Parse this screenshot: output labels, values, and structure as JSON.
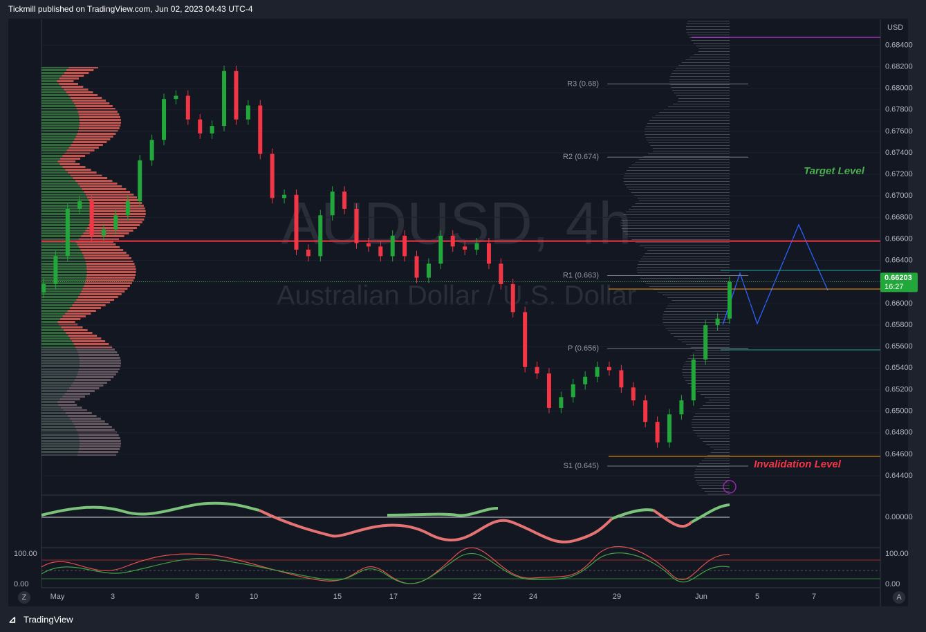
{
  "header": {
    "text": "Tickmill published on TradingView.com, Jun 02, 2023 04:43 UTC-4"
  },
  "chart": {
    "symbol": "AUDUSD, 4h",
    "description": "Australian Dollar / U.S. Dollar",
    "currency": "USD",
    "candles": [
      [
        0.661,
        0.6623,
        0.6605,
        0.6618
      ],
      [
        0.6618,
        0.6649,
        0.6613,
        0.6644
      ],
      [
        0.6644,
        0.6693,
        0.6639,
        0.6688
      ],
      [
        0.6688,
        0.67,
        0.6683,
        0.6695
      ],
      [
        0.6695,
        0.67,
        0.6658,
        0.6663
      ],
      [
        0.6663,
        0.6674,
        0.6658,
        0.6669
      ],
      [
        0.6669,
        0.6687,
        0.6664,
        0.6682
      ],
      [
        0.6682,
        0.67,
        0.6677,
        0.6695
      ],
      [
        0.6695,
        0.6738,
        0.669,
        0.6733
      ],
      [
        0.6733,
        0.6757,
        0.6728,
        0.6752
      ],
      [
        0.6752,
        0.6795,
        0.6747,
        0.679
      ],
      [
        0.679,
        0.6798,
        0.6785,
        0.6793
      ],
      [
        0.6793,
        0.6798,
        0.6766,
        0.6771
      ],
      [
        0.6771,
        0.6776,
        0.6753,
        0.6758
      ],
      [
        0.6758,
        0.677,
        0.6753,
        0.6765
      ],
      [
        0.6765,
        0.6821,
        0.676,
        0.6816
      ],
      [
        0.6816,
        0.6821,
        0.6766,
        0.6771
      ],
      [
        0.6771,
        0.6789,
        0.6766,
        0.6784
      ],
      [
        0.6784,
        0.6789,
        0.6734,
        0.6739
      ],
      [
        0.6739,
        0.6744,
        0.6693,
        0.6698
      ],
      [
        0.6698,
        0.6706,
        0.6693,
        0.6701
      ],
      [
        0.6701,
        0.6706,
        0.6645,
        0.665
      ],
      [
        0.665,
        0.6655,
        0.6639,
        0.6644
      ],
      [
        0.6644,
        0.6687,
        0.6639,
        0.6682
      ],
      [
        0.6682,
        0.6709,
        0.6677,
        0.6704
      ],
      [
        0.6704,
        0.6709,
        0.6683,
        0.6688
      ],
      [
        0.6688,
        0.6693,
        0.6651,
        0.6656
      ],
      [
        0.6656,
        0.6661,
        0.6648,
        0.6653
      ],
      [
        0.6653,
        0.6658,
        0.6639,
        0.6644
      ],
      [
        0.6644,
        0.6668,
        0.6639,
        0.6663
      ],
      [
        0.6663,
        0.6668,
        0.6639,
        0.6644
      ],
      [
        0.6644,
        0.6649,
        0.6619,
        0.6624
      ],
      [
        0.6624,
        0.6642,
        0.6619,
        0.6637
      ],
      [
        0.6637,
        0.6668,
        0.6632,
        0.6663
      ],
      [
        0.6663,
        0.6668,
        0.6648,
        0.6653
      ],
      [
        0.6653,
        0.6658,
        0.6645,
        0.665
      ],
      [
        0.665,
        0.6661,
        0.6645,
        0.6656
      ],
      [
        0.6656,
        0.6661,
        0.6632,
        0.6637
      ],
      [
        0.6637,
        0.6642,
        0.6613,
        0.6618
      ],
      [
        0.6618,
        0.6623,
        0.6587,
        0.6592
      ],
      [
        0.6592,
        0.6597,
        0.6536,
        0.6541
      ],
      [
        0.6541,
        0.6546,
        0.653,
        0.6535
      ],
      [
        0.6535,
        0.654,
        0.6498,
        0.6503
      ],
      [
        0.6503,
        0.6518,
        0.6498,
        0.6513
      ],
      [
        0.6513,
        0.653,
        0.6508,
        0.6525
      ],
      [
        0.6525,
        0.6537,
        0.652,
        0.6532
      ],
      [
        0.6532,
        0.6546,
        0.6527,
        0.6541
      ],
      [
        0.6541,
        0.6546,
        0.6533,
        0.6538
      ],
      [
        0.6538,
        0.6543,
        0.6517,
        0.6522
      ],
      [
        0.6522,
        0.6527,
        0.6505,
        0.651
      ],
      [
        0.651,
        0.6515,
        0.6485,
        0.649
      ],
      [
        0.649,
        0.6495,
        0.6466,
        0.6471
      ],
      [
        0.6471,
        0.6502,
        0.6466,
        0.6497
      ],
      [
        0.6497,
        0.6515,
        0.6492,
        0.651
      ],
      [
        0.651,
        0.6553,
        0.6505,
        0.6548
      ],
      [
        0.6548,
        0.6585,
        0.6543,
        0.658
      ],
      [
        0.658,
        0.6591,
        0.6575,
        0.6586
      ],
      [
        0.6586,
        0.6625,
        0.6581,
        0.662
      ]
    ],
    "ylim": [
      0.6422,
      0.6864
    ],
    "yticks": [
      {
        "value": 0.684,
        "label": "0.68400"
      },
      {
        "value": 0.682,
        "label": "0.68200"
      },
      {
        "value": 0.68,
        "label": "0.68000"
      },
      {
        "value": 0.678,
        "label": "0.67800"
      },
      {
        "value": 0.676,
        "label": "0.67600"
      },
      {
        "value": 0.674,
        "label": "0.67400"
      },
      {
        "value": 0.672,
        "label": "0.67200"
      },
      {
        "value": 0.67,
        "label": "0.67000"
      },
      {
        "value": 0.668,
        "label": "0.66800"
      },
      {
        "value": 0.666,
        "label": "0.66600"
      },
      {
        "value": 0.664,
        "label": "0.66400"
      },
      {
        "value": 0.662,
        "label": "0.66200"
      },
      {
        "value": 0.66,
        "label": "0.66000"
      },
      {
        "value": 0.658,
        "label": "0.65800"
      },
      {
        "value": 0.656,
        "label": "0.65600"
      },
      {
        "value": 0.654,
        "label": "0.65400"
      },
      {
        "value": 0.652,
        "label": "0.65200"
      },
      {
        "value": 0.65,
        "label": "0.65000"
      },
      {
        "value": 0.648,
        "label": "0.64800"
      },
      {
        "value": 0.646,
        "label": "0.64600"
      },
      {
        "value": 0.644,
        "label": "0.64400"
      }
    ],
    "xticks": [
      "May",
      "3",
      "8",
      "10",
      "15",
      "17",
      "22",
      "24",
      "29",
      "Jun",
      "5",
      "7"
    ],
    "pivots": [
      {
        "label": "R3 (0.68)",
        "value": 0.6804
      },
      {
        "label": "R2 (0.674)",
        "value": 0.6736
      },
      {
        "label": "R1 (0.663)",
        "value": 0.6626
      },
      {
        "label": "P (0.656)",
        "value": 0.6558
      },
      {
        "label": "S1 (0.645)",
        "value": 0.6449
      }
    ],
    "key_level": 0.6658,
    "last_price": {
      "value": 0.66203,
      "label": "0.66203",
      "countdown": "16:27"
    },
    "annotations": {
      "target": "Target Level",
      "invalidation": "Invalidation Level"
    }
  },
  "oscillator": {
    "label": "0.00000"
  },
  "stochastic": {
    "top_left": "100.00",
    "bottom_left": "0.00",
    "top_right": "100.00",
    "bottom_right": "0.00"
  },
  "buttons": {
    "left": "Z",
    "right": "A"
  },
  "footer": {
    "brand": "TradingView"
  }
}
